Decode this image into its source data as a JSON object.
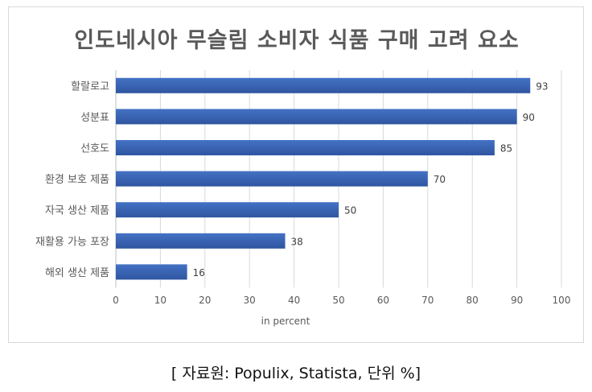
{
  "chart_data": {
    "type": "bar",
    "orientation": "horizontal",
    "title": "인도네시아 무슬림 소비자  식품 구매  고려 요소",
    "categories": [
      "할랄로고",
      "성분표",
      "선호도",
      "환경 보호 제품",
      "자국 생산 제품",
      "재활용 가능 포장",
      "해외 생산 제품"
    ],
    "values": [
      93,
      90,
      85,
      70,
      50,
      38,
      16
    ],
    "xlabel": "in percent",
    "ylabel": "",
    "xlim": [
      0,
      100
    ],
    "xticks": [
      "0",
      "10",
      "20",
      "30",
      "40",
      "50",
      "60",
      "70",
      "80",
      "90",
      "100"
    ],
    "grid": true,
    "legend": "none",
    "data_labels": true,
    "colors": {
      "bar": "#4472c4",
      "bar_dark": "#2f55a0",
      "grid": "#d9d9d9",
      "text": "#595959"
    }
  },
  "caption": "[ 자료원: Populix, Statista, 단위 %]"
}
